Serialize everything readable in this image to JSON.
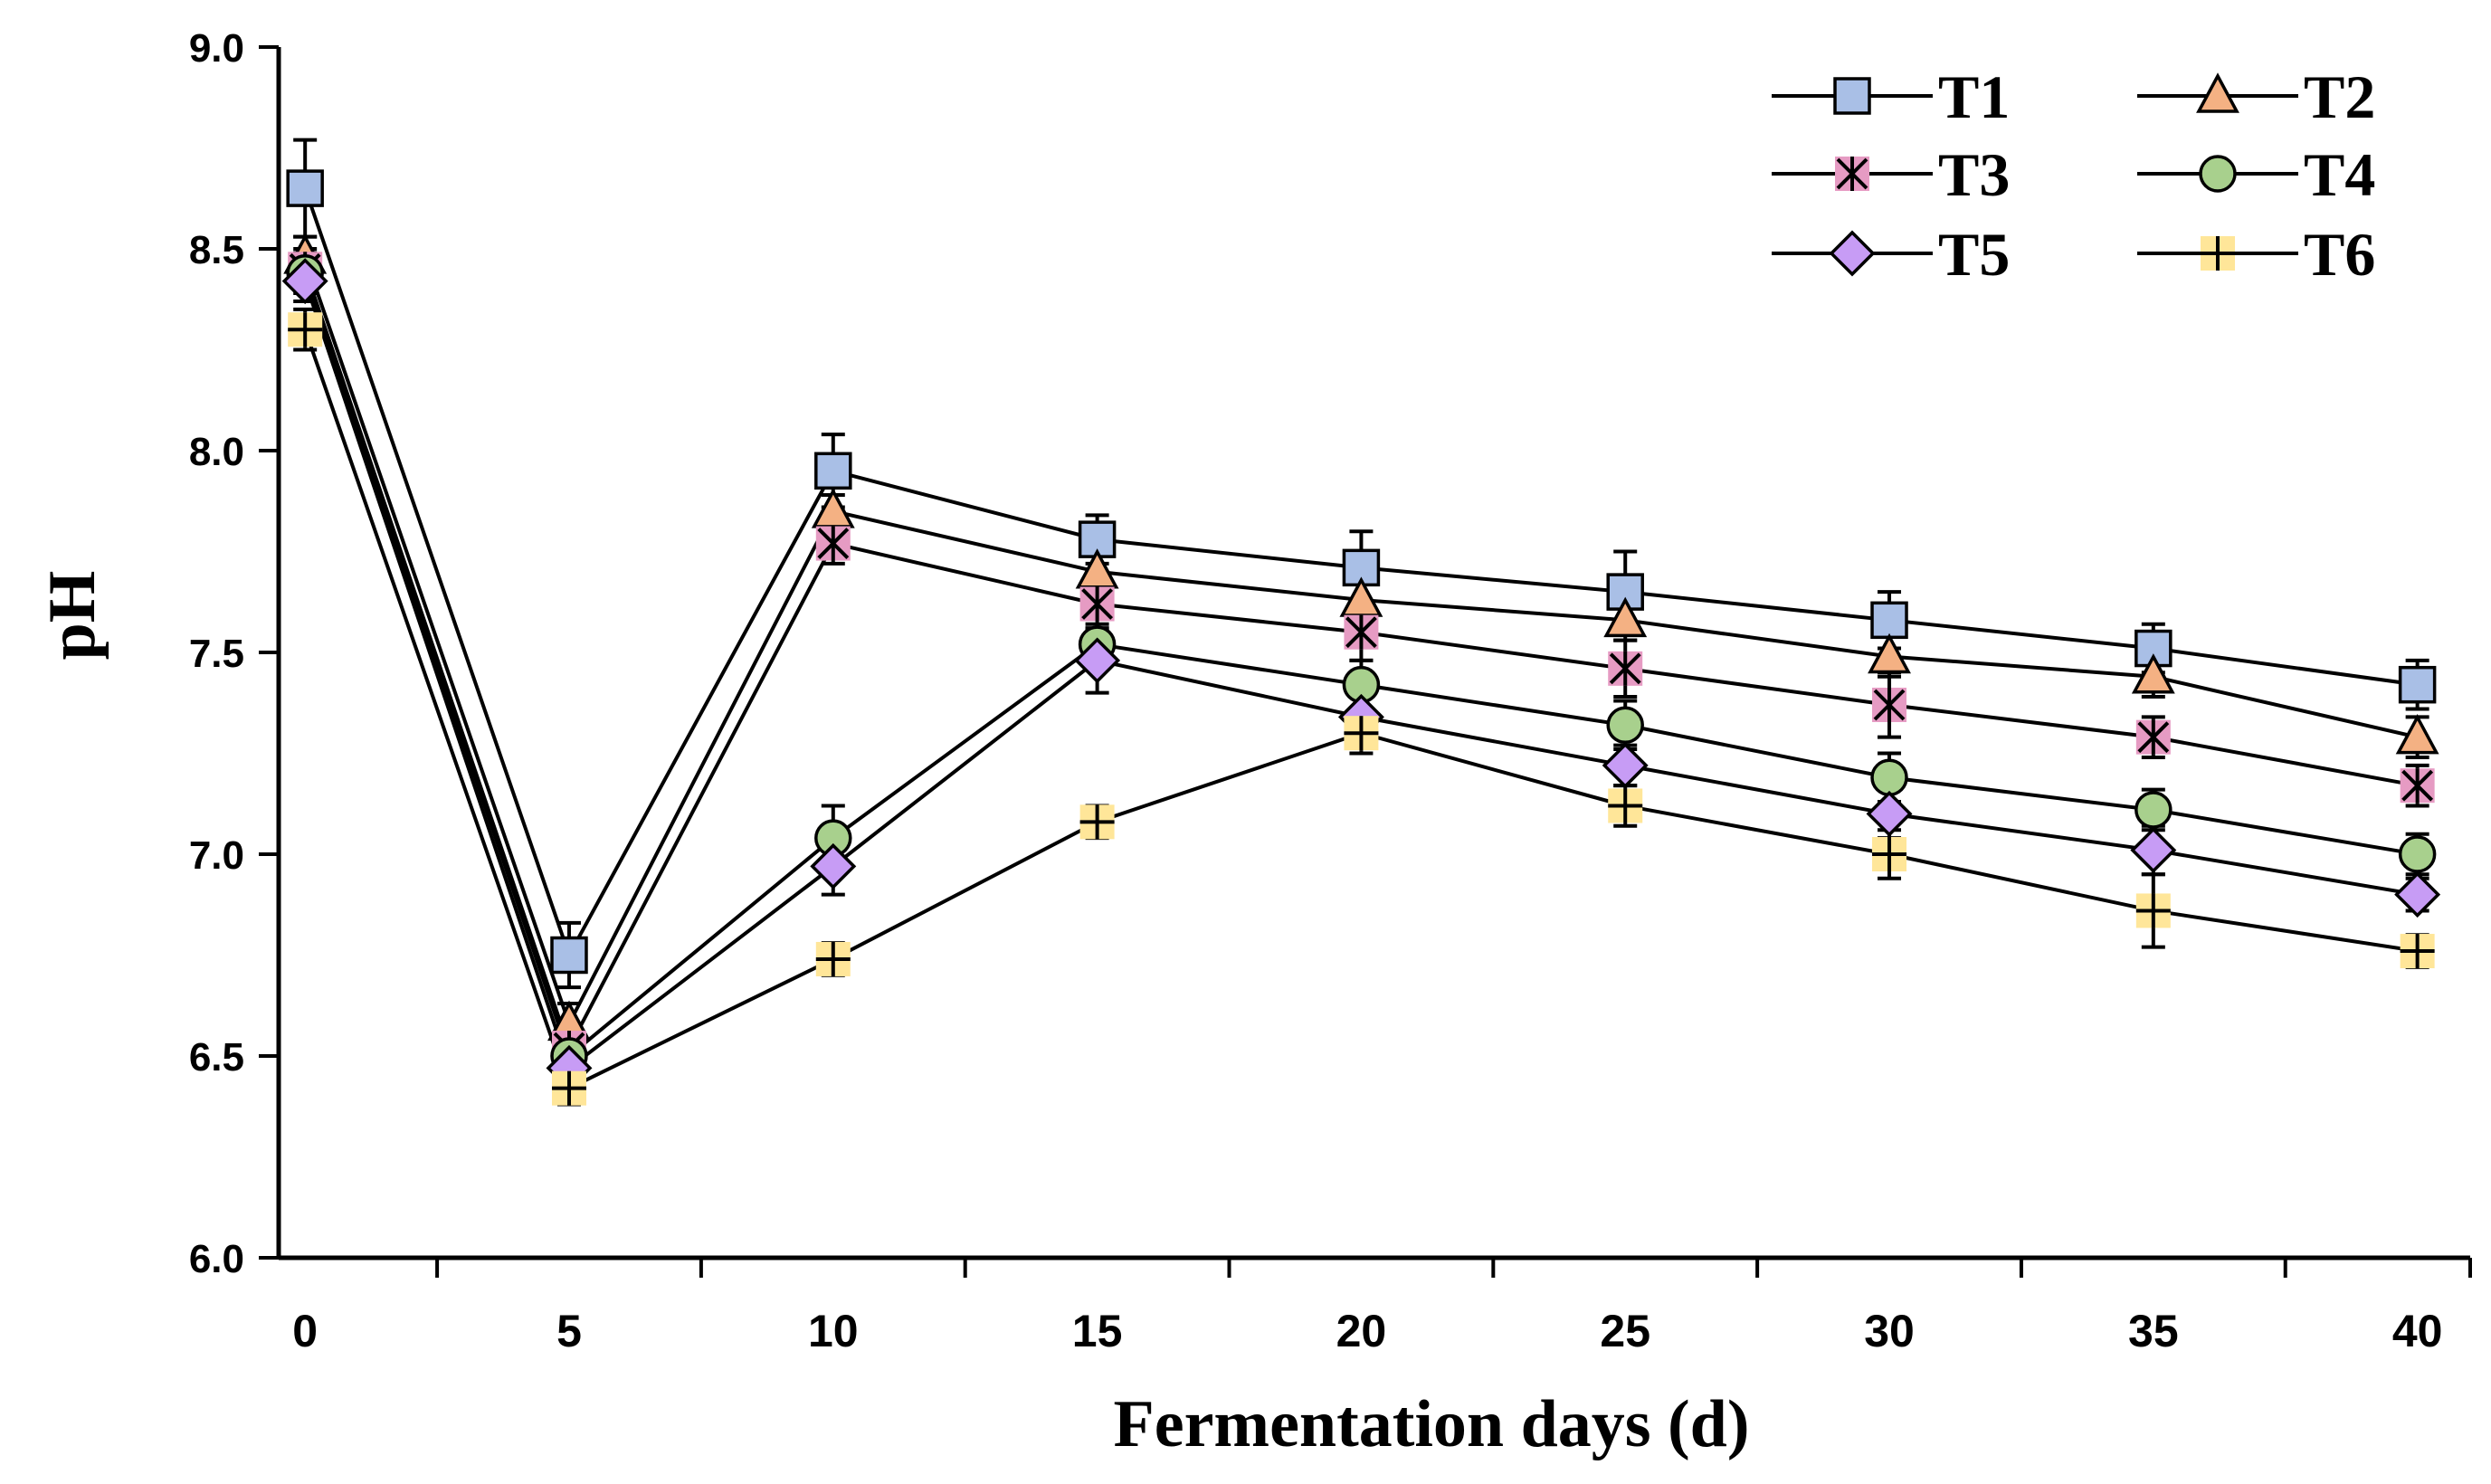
{
  "chart_data": {
    "type": "line",
    "title": "",
    "xlabel": "Fermentation days (d)",
    "ylabel": "pH",
    "x": [
      0,
      5,
      10,
      15,
      20,
      25,
      30,
      35,
      40
    ],
    "x_tick_labels": [
      "0",
      "5",
      "10",
      "15",
      "20",
      "25",
      "30",
      "35",
      "40"
    ],
    "y_tick_labels": [
      "6.0",
      "6.5",
      "7.0",
      "7.5",
      "8.0",
      "8.5",
      "9.0"
    ],
    "xlim": [
      -0.5,
      41
    ],
    "ylim": [
      6.0,
      9.0
    ],
    "grid": false,
    "legend_position": "top-right",
    "series": [
      {
        "name": "T1",
        "marker": "square",
        "color": "#a9bfe6",
        "values": [
          8.65,
          6.75,
          7.95,
          7.78,
          7.71,
          7.65,
          7.58,
          7.51,
          7.42
        ],
        "errors": [
          0.12,
          0.08,
          0.09,
          0.06,
          0.09,
          0.1,
          0.07,
          0.06,
          0.06
        ]
      },
      {
        "name": "T2",
        "marker": "triangle",
        "color": "#f4b183",
        "values": [
          8.48,
          6.58,
          7.85,
          7.7,
          7.63,
          7.58,
          7.49,
          7.44,
          7.29
        ],
        "errors": [
          0.05,
          0.05,
          0.04,
          0.05,
          0.05,
          0.05,
          0.05,
          0.05,
          0.05
        ]
      },
      {
        "name": "T3",
        "marker": "asterisk",
        "color": "#e69bc3",
        "values": [
          8.45,
          6.52,
          7.77,
          7.62,
          7.55,
          7.46,
          7.37,
          7.29,
          7.17
        ],
        "errors": [
          0.05,
          0.05,
          0.05,
          0.06,
          0.07,
          0.07,
          0.08,
          0.05,
          0.05
        ]
      },
      {
        "name": "T4",
        "marker": "circle",
        "color": "#a8d08d",
        "values": [
          8.44,
          6.5,
          7.04,
          7.52,
          7.42,
          7.32,
          7.19,
          7.11,
          7.0
        ],
        "errors": [
          0.05,
          0.05,
          0.08,
          0.05,
          0.06,
          0.06,
          0.06,
          0.05,
          0.05
        ]
      },
      {
        "name": "T5",
        "marker": "diamond",
        "color": "#c79cf5",
        "values": [
          8.42,
          6.47,
          6.97,
          7.48,
          7.34,
          7.22,
          7.1,
          7.01,
          6.9
        ],
        "errors": [
          0.05,
          0.05,
          0.07,
          0.08,
          0.05,
          0.05,
          0.06,
          0.06,
          0.04
        ]
      },
      {
        "name": "T6",
        "marker": "plus",
        "color": "#ffe699",
        "values": [
          8.3,
          6.42,
          6.74,
          7.08,
          7.3,
          7.12,
          7.0,
          6.86,
          6.76
        ],
        "errors": [
          0.05,
          0.04,
          0.04,
          0.04,
          0.05,
          0.05,
          0.06,
          0.09,
          0.04
        ]
      }
    ]
  }
}
